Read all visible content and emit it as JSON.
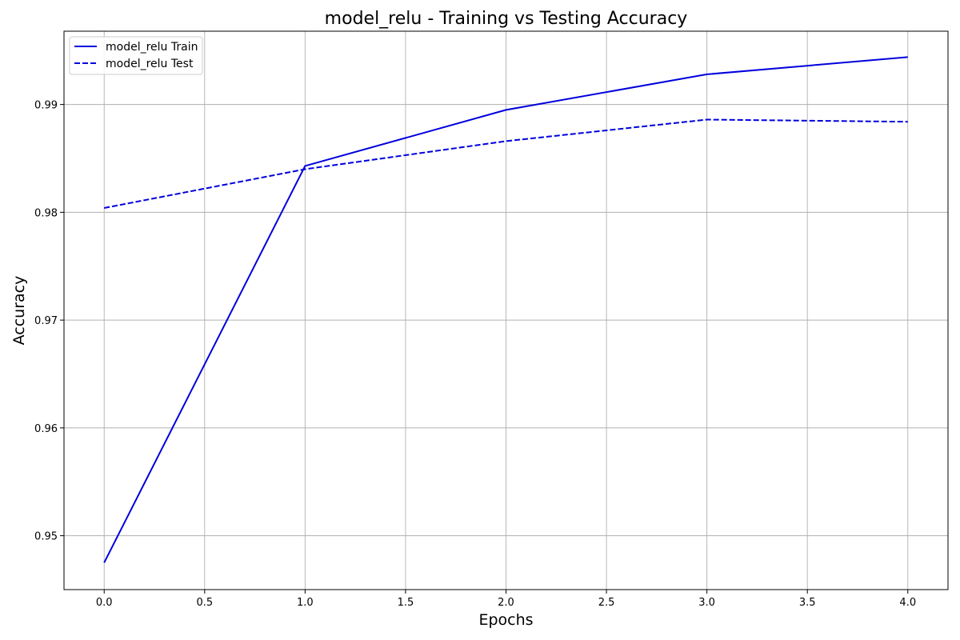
{
  "chart_data": {
    "type": "line",
    "title": "model_relu - Training vs Testing Accuracy",
    "xlabel": "Epochs",
    "ylabel": "Accuracy",
    "x": [
      0,
      1,
      2,
      3,
      4
    ],
    "xlim": [
      -0.2,
      4.2
    ],
    "ylim": [
      0.945,
      0.9968
    ],
    "x_ticks": [
      0.0,
      0.5,
      1.0,
      1.5,
      2.0,
      2.5,
      3.0,
      3.5,
      4.0
    ],
    "x_tick_labels": [
      "0.0",
      "0.5",
      "1.0",
      "1.5",
      "2.0",
      "2.5",
      "3.0",
      "3.5",
      "4.0"
    ],
    "y_ticks": [
      0.95,
      0.96,
      0.97,
      0.98,
      0.99
    ],
    "y_tick_labels": [
      "0.95",
      "0.96",
      "0.97",
      "0.98",
      "0.99"
    ],
    "grid": true,
    "legend_position": "top-left",
    "series": [
      {
        "name": "model_relu Train",
        "values": [
          0.9475,
          0.9843,
          0.9895,
          0.9928,
          0.9944
        ],
        "color": "#0000dd",
        "dash": "solid"
      },
      {
        "name": "model_relu Test",
        "values": [
          0.9804,
          0.984,
          0.9866,
          0.9886,
          0.9884
        ],
        "color": "#0000dd",
        "dash": "dashed"
      }
    ]
  }
}
